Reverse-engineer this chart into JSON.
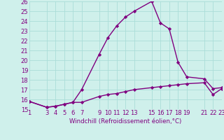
{
  "title": "Windchill (Refroidissement éolien,°C)",
  "background_color": "#cff0eb",
  "line_color": "#800080",
  "x_ticks": [
    1,
    3,
    4,
    5,
    6,
    7,
    9,
    10,
    11,
    12,
    13,
    15,
    16,
    17,
    18,
    19,
    21,
    22,
    23
  ],
  "series1_x": [
    1,
    3,
    4,
    5,
    6,
    7,
    9,
    10,
    11,
    12,
    13,
    15,
    16,
    17,
    18,
    19,
    21,
    22,
    23
  ],
  "series1_y": [
    15.8,
    15.2,
    15.3,
    15.5,
    15.7,
    15.7,
    16.3,
    16.5,
    16.6,
    16.8,
    17.0,
    17.2,
    17.3,
    17.4,
    17.5,
    17.6,
    17.7,
    16.5,
    17.1
  ],
  "series2_x": [
    1,
    3,
    4,
    5,
    6,
    7,
    9,
    10,
    11,
    12,
    13,
    15,
    16,
    17,
    18,
    19,
    21,
    22,
    23
  ],
  "series2_y": [
    15.8,
    15.2,
    15.3,
    15.5,
    15.7,
    17.0,
    20.6,
    22.3,
    23.5,
    24.4,
    25.0,
    26.0,
    23.8,
    23.2,
    19.8,
    18.3,
    18.1,
    17.1,
    17.2
  ],
  "ylim": [
    15,
    26
  ],
  "yticks": [
    15,
    16,
    17,
    18,
    19,
    20,
    21,
    22,
    23,
    24,
    25,
    26
  ],
  "grid_color": "#aaddd8",
  "tick_color": "#800080",
  "marker": "D",
  "markersize": 2.2,
  "linewidth": 1.0,
  "tick_fontsize": 6.0,
  "xlabel_fontsize": 6.2
}
